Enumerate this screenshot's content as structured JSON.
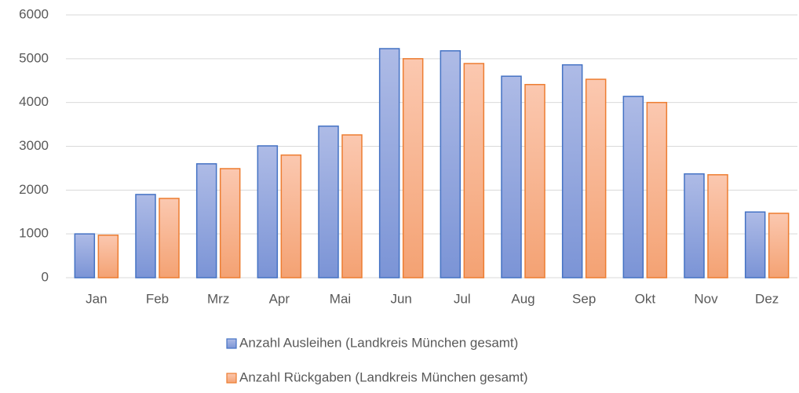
{
  "chart_data": {
    "type": "bar",
    "categories": [
      "Jan",
      "Feb",
      "Mrz",
      "Apr",
      "Mai",
      "Jun",
      "Jul",
      "Aug",
      "Sep",
      "Okt",
      "Nov",
      "Dez"
    ],
    "series": [
      {
        "name": "Anzahl Ausleihen (Landkreis München gesamt)",
        "color": "#4472c4",
        "values": [
          1000,
          1900,
          2600,
          3010,
          3460,
          5230,
          5180,
          4600,
          4860,
          4140,
          2370,
          1500
        ]
      },
      {
        "name": "Anzahl Rückgaben (Landkreis München gesamt)",
        "color": "#ed7d31",
        "values": [
          970,
          1810,
          2490,
          2800,
          3260,
          5000,
          4890,
          4410,
          4530,
          4000,
          2350,
          1470
        ]
      }
    ],
    "ylim": [
      0,
      6000
    ],
    "yticks": [
      0,
      1000,
      2000,
      3000,
      4000,
      5000,
      6000
    ],
    "grid": true,
    "legend": "bottom"
  }
}
